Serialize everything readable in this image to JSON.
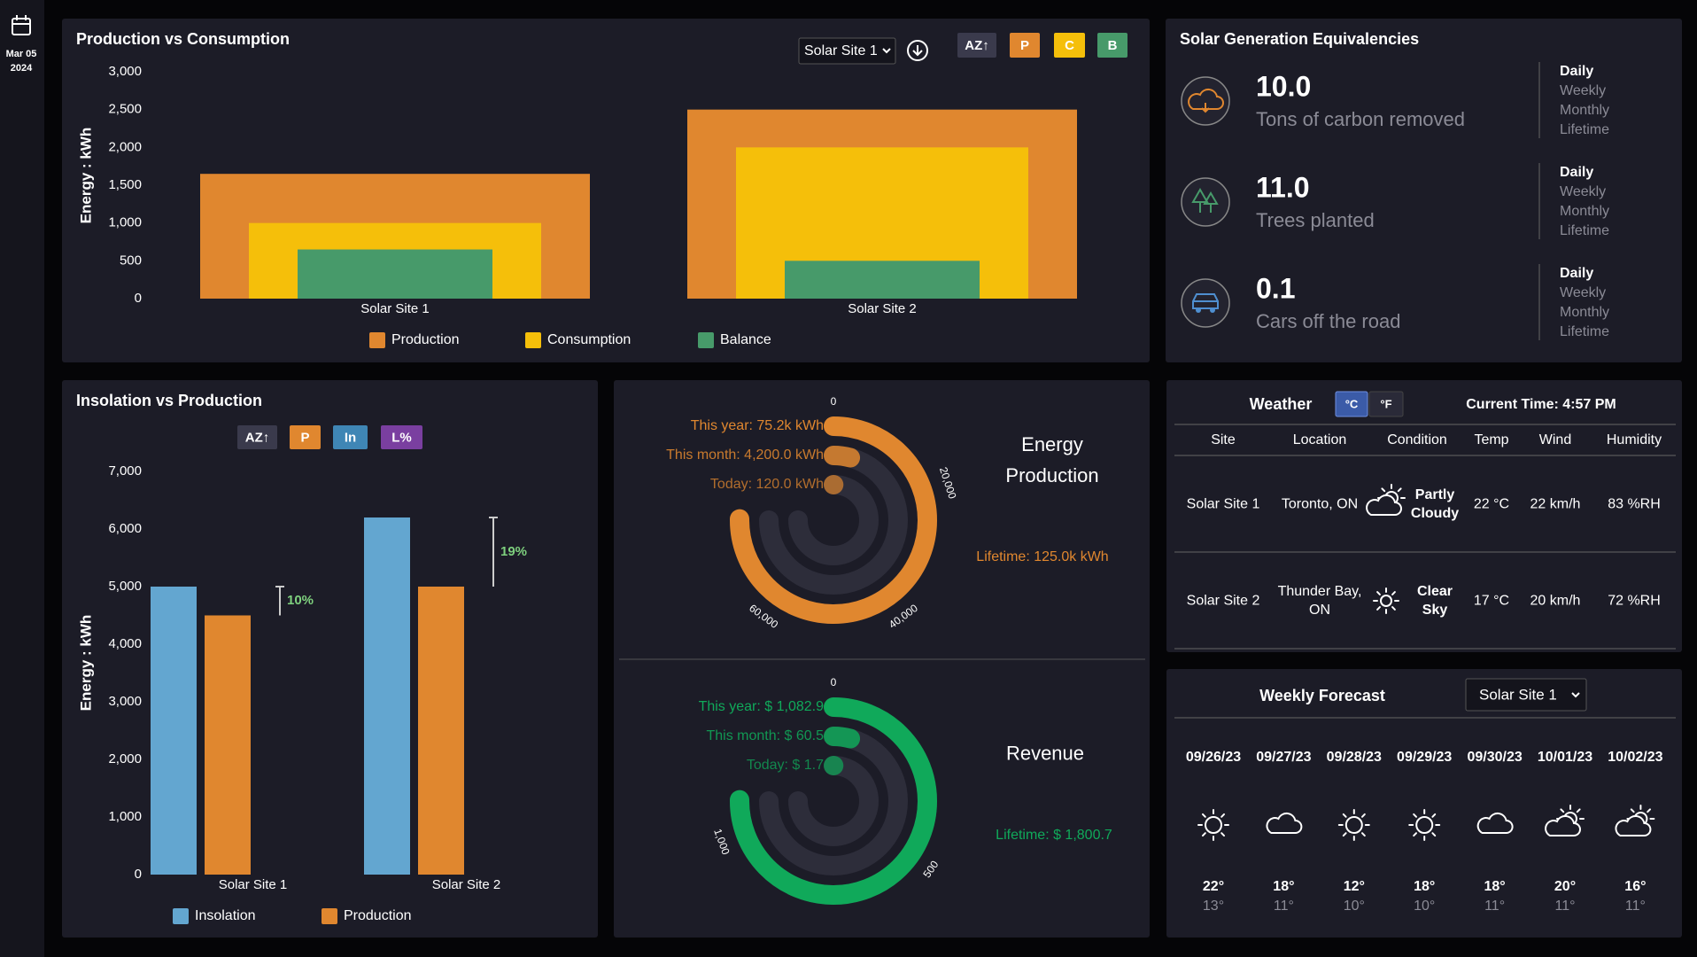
{
  "sidebar": {
    "date": "Mar 05",
    "year": "2024"
  },
  "chart_data": [
    {
      "type": "bar",
      "overlap": true,
      "title": "Production vs Consumption",
      "y_label": "Energy : kWh",
      "dropdown": "Solar Site 1",
      "buttons": [
        "AZ↑",
        "P",
        "C",
        "B"
      ],
      "categories": [
        "Solar Site 1",
        "Solar Site 2"
      ],
      "series": [
        {
          "name": "Production",
          "color": "#e0872f",
          "values": [
            1650,
            2500
          ]
        },
        {
          "name": "Consumption",
          "color": "#f5bf0a",
          "values": [
            1000,
            2000
          ]
        },
        {
          "name": "Balance",
          "color": "#479a6a",
          "values": [
            650,
            500
          ]
        }
      ],
      "ylim": [
        0,
        3000
      ],
      "yticks": [
        0,
        500,
        {
          "value": 1000,
          "label": "1,000"
        },
        {
          "value": 1500,
          "label": "1,500"
        },
        {
          "value": 2000,
          "label": "2,000"
        },
        {
          "value": 2500,
          "label": "2,500"
        },
        {
          "value": 3000,
          "label": "3,000"
        }
      ]
    },
    {
      "type": "bar",
      "overlap": false,
      "title": "Insolation vs Production",
      "y_label": "Energy : kWh",
      "buttons": [
        "AZ↑",
        "P",
        "In",
        "L%"
      ],
      "categories": [
        "Solar Site 1",
        "Solar Site 2"
      ],
      "series": [
        {
          "name": "Insolation",
          "color": "#63a6d0",
          "values": [
            5000,
            6200
          ]
        },
        {
          "name": "Production",
          "color": "#e0872f",
          "values": [
            4500,
            5000
          ]
        }
      ],
      "annotations": [
        "10%",
        "19%"
      ],
      "ylim": [
        0,
        7000
      ],
      "yticks": [
        0,
        {
          "value": 1000,
          "label": "1,000"
        },
        {
          "value": 2000,
          "label": "2,000"
        },
        {
          "value": 3000,
          "label": "3,000"
        },
        {
          "value": 4000,
          "label": "4,000"
        },
        {
          "value": 5000,
          "label": "5,000"
        },
        {
          "value": 6000,
          "label": "6,000"
        },
        {
          "value": 7000,
          "label": "7,000"
        }
      ]
    },
    {
      "type": "radial",
      "title": "Energy Production",
      "color": "#e0872f",
      "values": [
        75200,
        4200,
        120
      ],
      "value_labels": [
        "This year: 75.2k kWh",
        "This month: 4,200.0 kWh",
        "Today: 120.0 kWh"
      ],
      "annotation": "Lifetime: 125.0k kWh",
      "rlim": [
        0,
        100000
      ],
      "rticks": [
        0,
        {
          "value": 20000,
          "label": "20,000"
        },
        {
          "value": 40000,
          "label": "40,000"
        },
        {
          "value": 60000,
          "label": "60,000"
        }
      ]
    },
    {
      "type": "radial",
      "title": "Revenue",
      "color": "#10a95a",
      "values": [
        1082.9,
        60.5,
        1.7
      ],
      "value_labels": [
        "This year: $ 1,082.9",
        "This month: $ 60.5",
        "Today: $ 1.7"
      ],
      "annotation": "Lifetime: $ 1,800.7",
      "rlim": [
        0,
        1440
      ],
      "rticks": [
        0,
        500,
        {
          "value": 1000,
          "label": "1,000"
        }
      ]
    }
  ],
  "equivalencies": {
    "title": "Solar Generation Equivalencies",
    "items": [
      {
        "value": "10.0",
        "label": "Tons of carbon removed",
        "periods": [
          "Daily",
          "Weekly",
          "Monthly",
          "Lifetime"
        ]
      },
      {
        "value": "11.0",
        "label": "Trees planted",
        "periods": [
          "Daily",
          "Weekly",
          "Monthly",
          "Lifetime"
        ]
      },
      {
        "value": "0.1",
        "label": "Cars off the road",
        "periods": [
          "Daily",
          "Weekly",
          "Monthly",
          "Lifetime"
        ]
      }
    ]
  },
  "weather": {
    "title": "Weather",
    "units": [
      "°C",
      "°F"
    ],
    "current_time": "Current Time: 4:57 PM",
    "columns": [
      "Site",
      "Location",
      "Condition",
      "Temp",
      "Wind",
      "Humidity"
    ],
    "rows": [
      [
        "Solar Site 1",
        "Toronto, ON",
        "Partly Cloudy",
        "22 °C",
        "22 km/h",
        "83 %RH"
      ],
      [
        "Solar Site 2",
        "Thunder Bay, ON",
        "Clear Sky",
        "17 °C",
        "20 km/h",
        "72 %RH"
      ]
    ]
  },
  "forecast": {
    "title": "Weekly Forecast",
    "dropdown": "Solar Site 1",
    "days": [
      {
        "date": "09/26/23",
        "high": "22°",
        "low": "13°"
      },
      {
        "date": "09/27/23",
        "high": "18°",
        "low": "11°"
      },
      {
        "date": "09/28/23",
        "high": "12°",
        "low": "10°"
      },
      {
        "date": "09/29/23",
        "high": "18°",
        "low": "10°"
      },
      {
        "date": "09/30/23",
        "high": "18°",
        "low": "11°"
      },
      {
        "date": "10/01/23",
        "high": "20°",
        "low": "11°"
      },
      {
        "date": "10/02/23",
        "high": "16°",
        "low": "11°"
      }
    ]
  }
}
